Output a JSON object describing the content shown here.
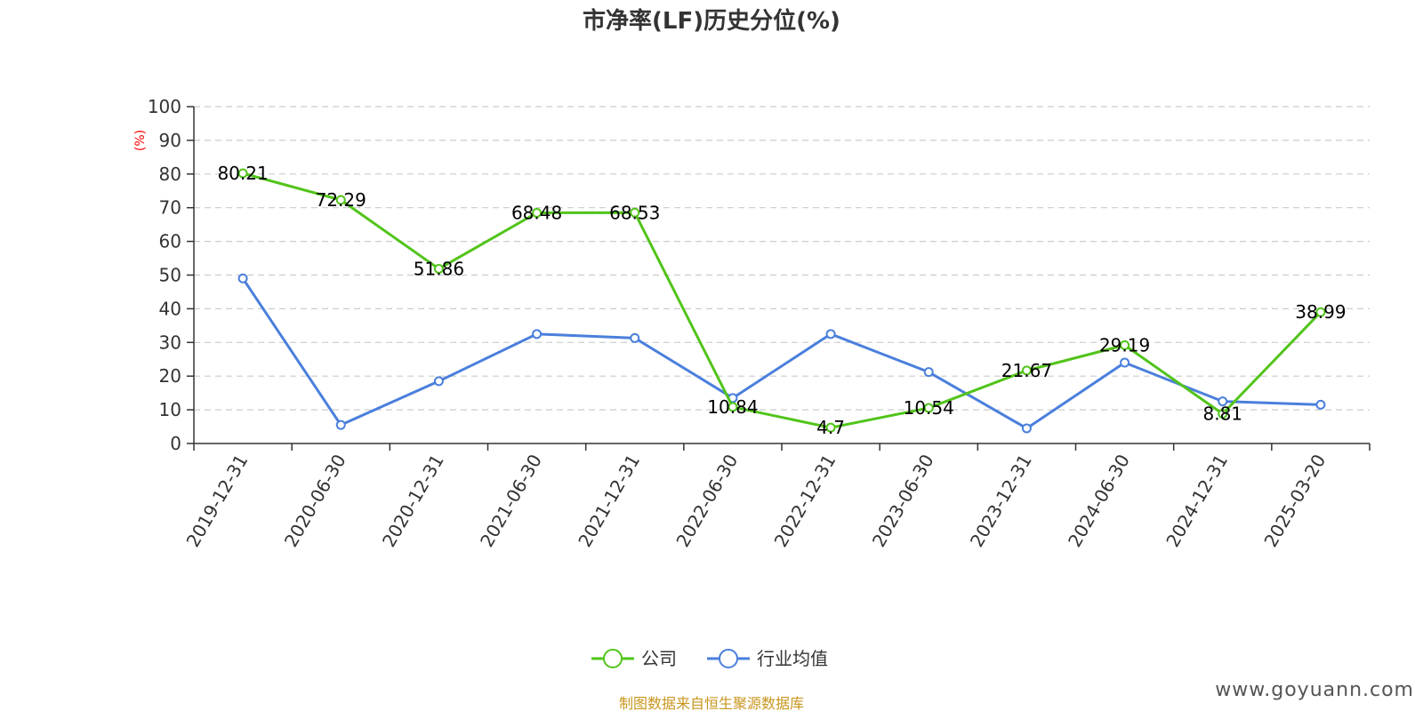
{
  "chart_data": {
    "type": "line",
    "title": "市净率(LF)历史分位(%)",
    "y_unit": "(%)",
    "ylim": [
      0,
      100
    ],
    "y_ticks": [
      0,
      10,
      20,
      30,
      40,
      50,
      60,
      70,
      80,
      90,
      100
    ],
    "grid": true,
    "legend_position": "bottom",
    "categories": [
      "2019-12-31",
      "2020-06-30",
      "2020-12-31",
      "2021-06-30",
      "2021-12-31",
      "2022-06-30",
      "2022-12-31",
      "2023-06-30",
      "2023-12-31",
      "2024-06-30",
      "2024-12-31",
      "2025-03-20"
    ],
    "series": [
      {
        "name": "公司",
        "color": "#52c41a",
        "labels_shown": true,
        "values": [
          80.21,
          72.29,
          51.86,
          68.48,
          68.53,
          10.84,
          4.7,
          10.54,
          21.67,
          29.19,
          8.81,
          38.99
        ],
        "labels": [
          "80.21",
          "72.29",
          "51.86",
          "68.48",
          "68.53",
          "10.84",
          "4.7",
          "10.54",
          "21.67",
          "29.19",
          "8.81",
          "38.99"
        ]
      },
      {
        "name": "行业均值",
        "color": "#4a7fdc",
        "labels_shown": false,
        "values": [
          49,
          5.5,
          18.5,
          32.5,
          31.3,
          13.5,
          32.5,
          21.2,
          4.5,
          24,
          12.5,
          11.5
        ]
      }
    ]
  },
  "footer": {
    "source_text": "制图数据来自恒生聚源数据库",
    "source_color": "#c8961e",
    "watermark": "www.goyuann.com"
  }
}
